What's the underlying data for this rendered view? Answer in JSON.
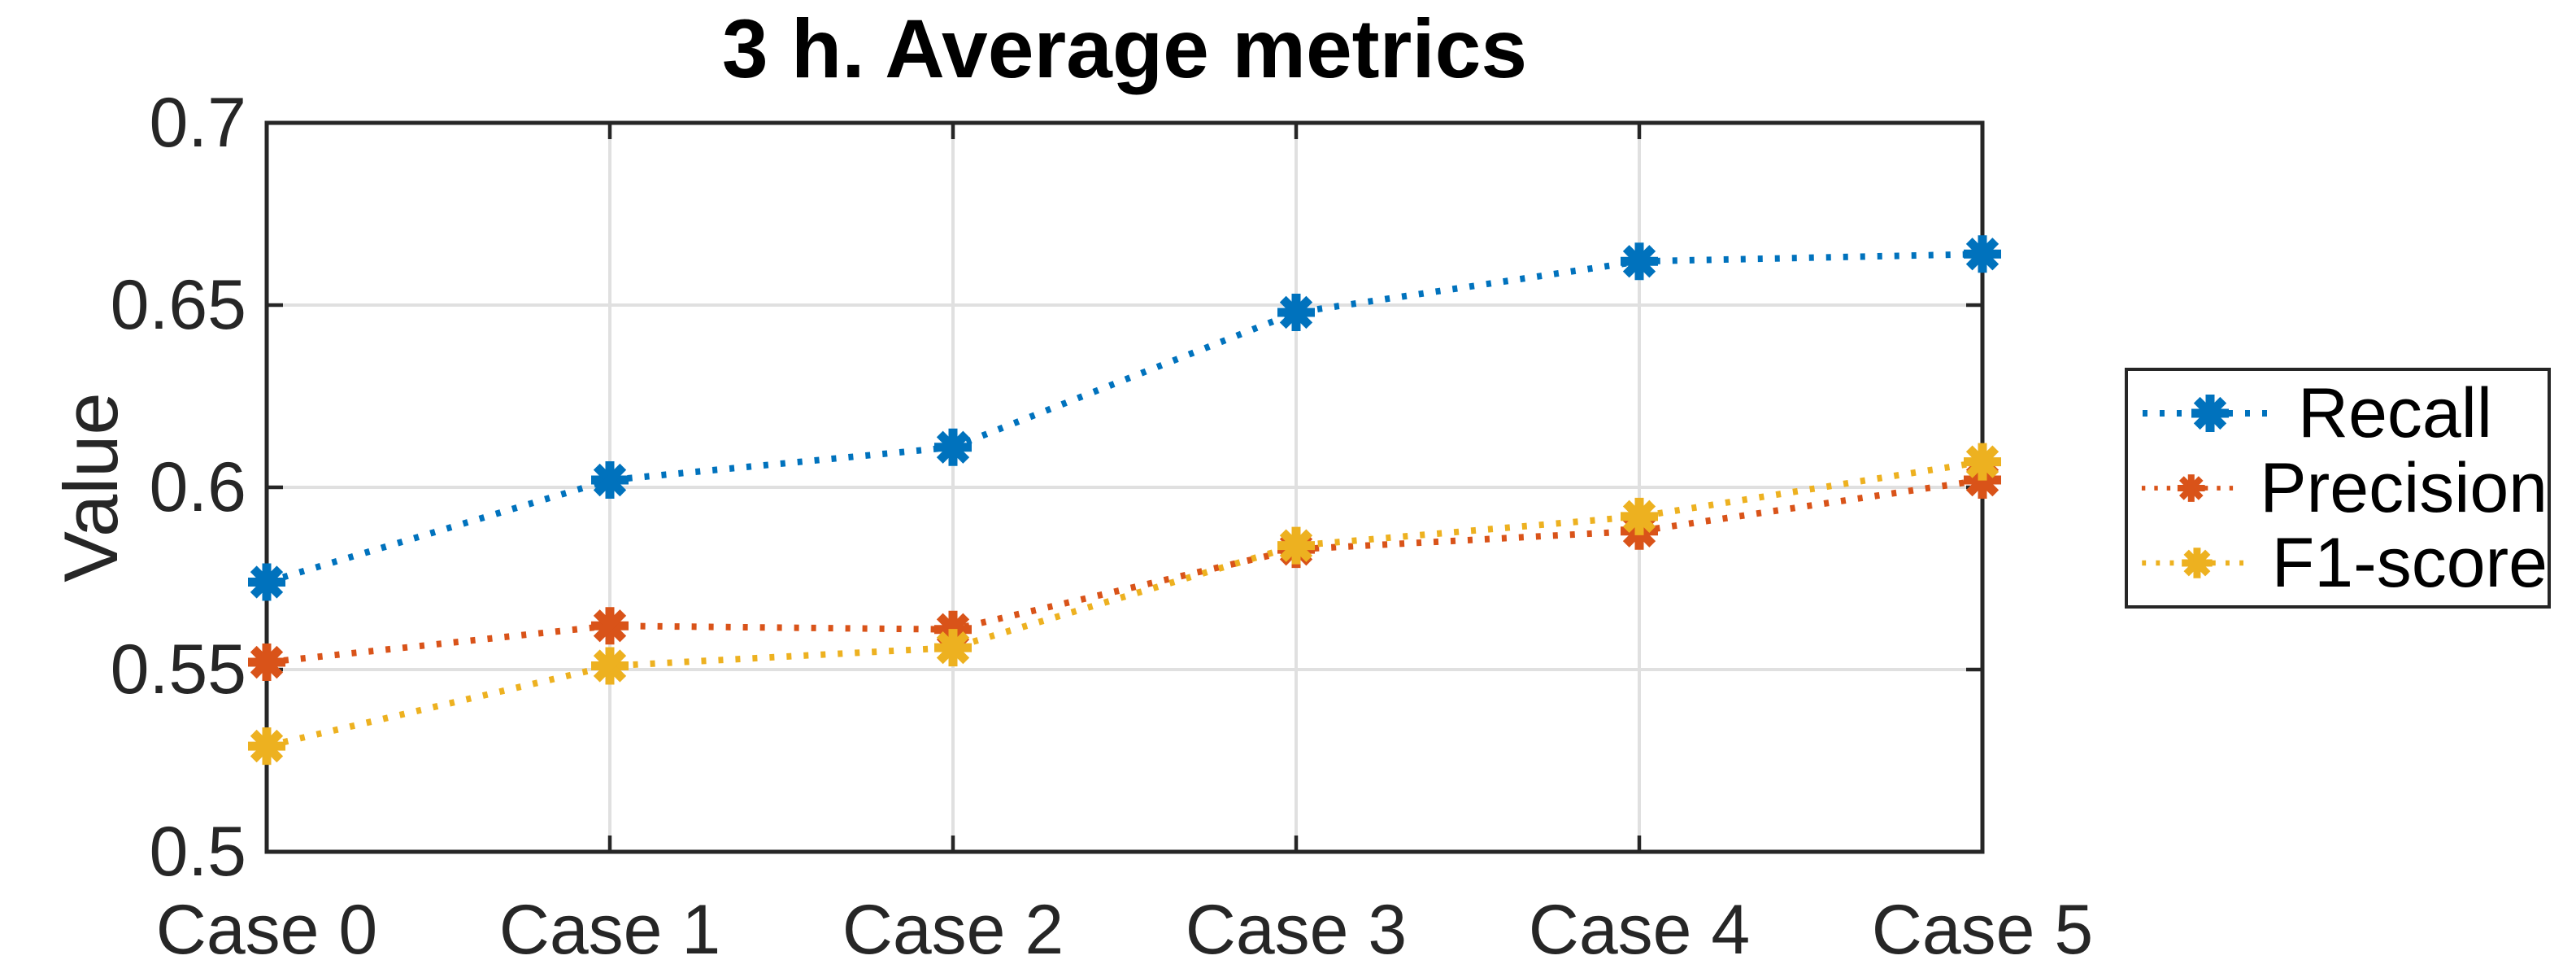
{
  "chart_data": {
    "type": "line",
    "title": "3 h. Average metrics",
    "xlabel": "",
    "ylabel": "Value",
    "categories": [
      "Case 0",
      "Case 1",
      "Case 2",
      "Case 3",
      "Case 4",
      "Case 5"
    ],
    "series": [
      {
        "name": "Recall",
        "color": "#0072BD",
        "values": [
          0.574,
          0.602,
          0.611,
          0.648,
          0.662,
          0.664
        ]
      },
      {
        "name": "Precision",
        "color": "#D95319",
        "values": [
          0.552,
          0.562,
          0.561,
          0.583,
          0.588,
          0.602
        ]
      },
      {
        "name": "F1-score",
        "color": "#EDB120",
        "values": [
          0.529,
          0.551,
          0.556,
          0.584,
          0.592,
          0.607
        ]
      }
    ],
    "ylim": [
      0.5,
      0.7
    ],
    "yticks": [
      0.5,
      0.55,
      0.6,
      0.65,
      0.7
    ],
    "ytick_labels": [
      "0.5",
      "0.55",
      "0.6",
      "0.65",
      "0.7"
    ],
    "grid": true,
    "line_style": "dotted",
    "marker": "asterisk",
    "legend_position": "right-outside"
  },
  "colors": {
    "axis": "#262626",
    "grid": "#e0e0e0",
    "background": "#ffffff",
    "title_text": "#000000",
    "tick_text": "#262626"
  }
}
